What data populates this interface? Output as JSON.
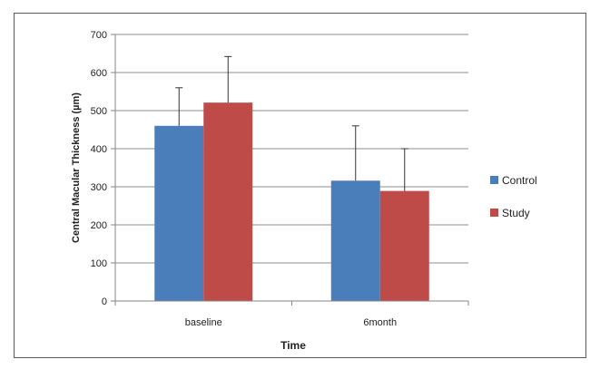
{
  "chart_data": {
    "type": "bar",
    "title": "",
    "xlabel": "Time",
    "ylabel": "Central Macular Thickness (µm)",
    "categories": [
      "baseline",
      "6month"
    ],
    "ylim": [
      0,
      700
    ],
    "yticks": [
      "0",
      "100",
      "200",
      "300",
      "400",
      "500",
      "600",
      "700"
    ],
    "grid": true,
    "legend_position": "right",
    "series": [
      {
        "name": "Control",
        "color": "#4a7ebb",
        "values": [
          460,
          316
        ],
        "error_plus": [
          100,
          144
        ]
      },
      {
        "name": "Study",
        "color": "#be4b48",
        "values": [
          521,
          289
        ],
        "error_plus": [
          121,
          111
        ]
      }
    ]
  }
}
